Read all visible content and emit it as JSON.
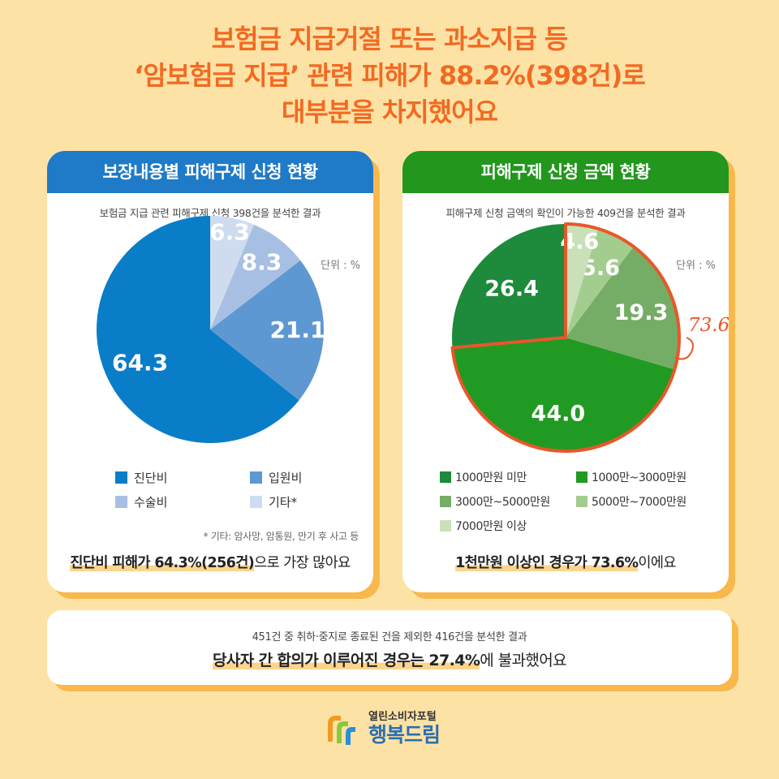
{
  "headline": {
    "line1": "보험금 지급거절 또는 과소지급 등",
    "line2": "‘암보험금 지급’ 관련 피해가 88.2%(398건)로",
    "line3": "대부분을 차지했어요"
  },
  "left_card": {
    "title": "보장내용별 피해구제 신청 현황",
    "subtitle": "보험금 지급 관련 피해구제 신청 398건을 분석한 결과",
    "unit": "단위 : %",
    "footnote": "* 기타: 암사망, 암통원, 만기 후 사고 등",
    "summary_highlight": "진단비 피해가 64.3%(256건)",
    "summary_rest": "으로 가장 많아요"
  },
  "right_card": {
    "title": "피해구제 신청 금액 현황",
    "subtitle": "피해구제 신청 금액의 확인이 가능한 409건을 분석한 결과",
    "unit": "단위 : %",
    "annotation": "73.6",
    "summary_highlight": "1천만원 이상인 경우가 73.6%",
    "summary_rest": "이에요"
  },
  "bottom": {
    "subtitle": "451건 중 취하·중지로 종료된 건을 제외한 416건을 분석한 결과",
    "main_highlight": "당사자 간 합의가 이루어진 경우는 27.4%",
    "main_rest": "에 불과했어요"
  },
  "logo": {
    "line1": "열린소비자포털",
    "line2": "행복드림"
  },
  "colors": {
    "headline": "#f26a21",
    "left_header": "#1f7ac7",
    "right_header": "#22961d",
    "highlight": "#fbd58c",
    "annotation": "#e8572a"
  },
  "chart_data": [
    {
      "type": "pie",
      "title": "보장내용별 피해구제 신청 현황",
      "unit": "%",
      "labels": [
        "진단비",
        "입원비",
        "수술비",
        "기타*"
      ],
      "values": [
        64.3,
        21.1,
        8.3,
        6.3
      ],
      "colors": [
        "#0a7dc9",
        "#5e98d2",
        "#a7bfe2",
        "#cfdcef"
      ],
      "start_angle_deg": 0,
      "direction": "counterclockwise"
    },
    {
      "type": "pie",
      "title": "피해구제 신청 금액 현황",
      "unit": "%",
      "labels": [
        "1000만원 미만",
        "1000만~3000만원",
        "3000만~5000만원",
        "5000만~7000만원",
        "7000만원 이상"
      ],
      "values": [
        26.4,
        44.0,
        19.3,
        5.6,
        4.6
      ],
      "colors": [
        "#1e8a3b",
        "#219a23",
        "#75ad66",
        "#a3cc8f",
        "#c9e0b8"
      ],
      "start_angle_deg": 0,
      "direction": "counterclockwise",
      "highlighted_group": [
        "1000만~3000만원",
        "3000만~5000만원",
        "5000만~7000만원",
        "7000만원 이상"
      ],
      "highlighted_total": 73.6
    }
  ]
}
